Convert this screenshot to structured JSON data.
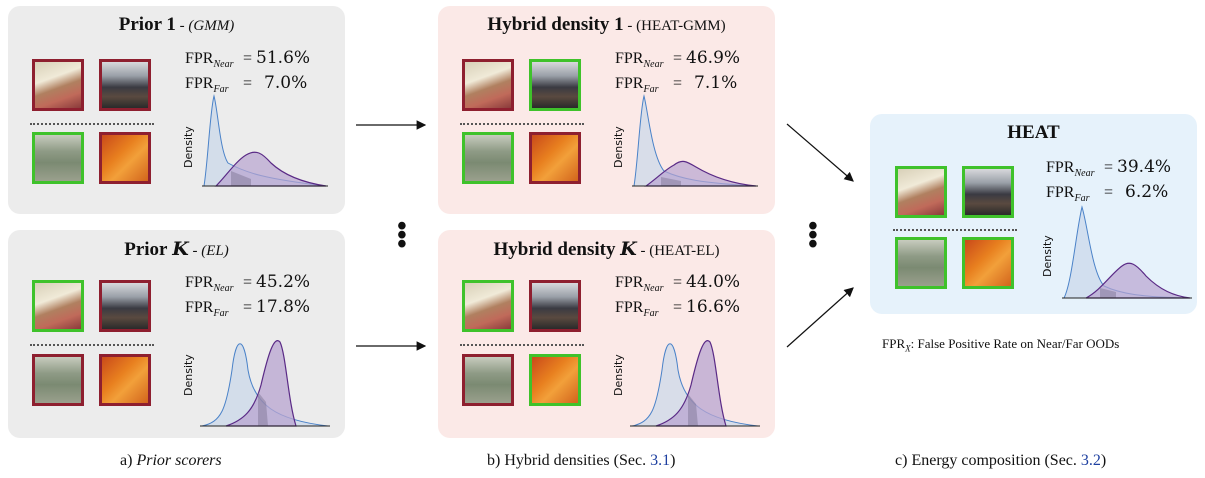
{
  "labels": {
    "fpr": "FPR",
    "near": "Near",
    "far": "Far",
    "density_axis": "Density"
  },
  "panels": {
    "prior1": {
      "title": "Prior 1",
      "sep": " - ",
      "sub": "(GMM)",
      "fpr_near": "51.6%",
      "fpr_far": "7.0%"
    },
    "priork": {
      "title": "Prior",
      "math": "K",
      "sep": " - ",
      "sub": "(EL)",
      "fpr_near": "45.2%",
      "fpr_far": "17.8%"
    },
    "hybrid1": {
      "title": "Hybrid density 1",
      "sep": " - ",
      "sub": "(HEAT-GMM)",
      "fpr_near": "46.9%",
      "fpr_far": "7.1%"
    },
    "hybridk": {
      "title": "Hybrid density",
      "math": "K",
      "sep": " - ",
      "sub": "(HEAT-EL)",
      "fpr_near": "44.0%",
      "fpr_far": "16.6%"
    },
    "heat": {
      "title": "HEAT",
      "fpr_near": "39.4%",
      "fpr_far": "6.2%"
    }
  },
  "footnote": {
    "fpr": "FPR",
    "x": "X",
    "text": ": False Positive Rate on Near/Far OODs"
  },
  "captions": {
    "a": {
      "prefix": "a)  ",
      "text": "Prior scorers"
    },
    "b": {
      "prefix": "b)  ",
      "text": "Hybrid densities (Sec. ",
      "ref": "3.1",
      "suffix": ")"
    },
    "c": {
      "prefix": "c)  ",
      "text": "Energy composition (Sec. ",
      "ref": "3.2",
      "suffix": ")"
    }
  },
  "colors": {
    "in_distribution": "#3fc22b",
    "ood": "#8e1f2f",
    "blue_curve": "#4a82c8",
    "purple_curve": "#5a2a86"
  },
  "icons": [
    "room-photo",
    "classroom-photo",
    "grass-photo",
    "pumpkin-photo",
    "arrow-right",
    "vertical-ellipsis"
  ]
}
